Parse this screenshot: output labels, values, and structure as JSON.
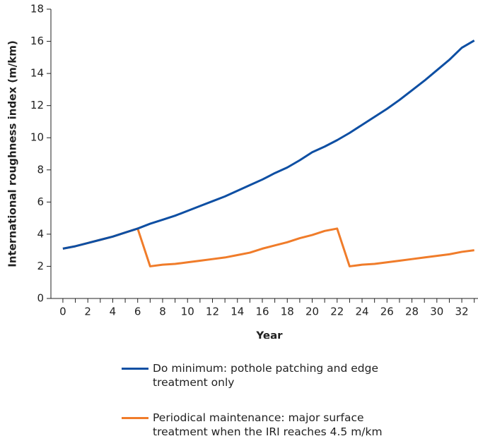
{
  "chart_data": {
    "type": "line",
    "xlabel": "Year",
    "ylabel": "International roughness index (m/km)",
    "x": [
      0,
      1,
      2,
      3,
      4,
      5,
      6,
      7,
      8,
      9,
      10,
      11,
      12,
      13,
      14,
      15,
      16,
      17,
      18,
      19,
      20,
      21,
      22,
      23,
      24,
      25,
      26,
      27,
      28,
      29,
      30,
      31,
      32,
      33
    ],
    "series": [
      {
        "name": "Do minimum: pothole patching and edge treatment only",
        "color": "#0e4fa3",
        "values": [
          3.1,
          3.25,
          3.45,
          3.65,
          3.85,
          4.1,
          4.35,
          4.65,
          4.9,
          5.15,
          5.45,
          5.75,
          6.05,
          6.35,
          6.7,
          7.05,
          7.4,
          7.8,
          8.15,
          8.6,
          9.1,
          9.45,
          9.85,
          10.3,
          10.8,
          11.3,
          11.8,
          12.35,
          12.95,
          13.55,
          14.2,
          14.85,
          15.6,
          16.05
        ]
      },
      {
        "name": "Periodical maintenance: major surface treatment when the IRI reaches 4.5 m/km",
        "color": "#f07c2a",
        "values": [
          3.1,
          3.25,
          3.45,
          3.65,
          3.85,
          4.1,
          4.35,
          2.0,
          2.1,
          2.15,
          2.25,
          2.35,
          2.45,
          2.55,
          2.7,
          2.85,
          3.1,
          3.3,
          3.5,
          3.75,
          3.95,
          4.2,
          4.35,
          2.0,
          2.1,
          2.15,
          2.25,
          2.35,
          2.45,
          2.55,
          2.65,
          2.75,
          2.9,
          3.0
        ]
      }
    ],
    "xlim": [
      -0.96,
      33.3
    ],
    "ylim": [
      0,
      18
    ],
    "xticks": [
      0,
      2,
      4,
      6,
      8,
      10,
      12,
      14,
      16,
      18,
      20,
      22,
      24,
      26,
      28,
      30,
      32
    ],
    "minor_xticks": [
      1,
      3,
      5,
      7,
      9,
      11,
      13,
      15,
      17,
      19,
      21,
      23,
      25,
      27,
      29,
      31,
      33
    ],
    "yticks": [
      0,
      2,
      4,
      6,
      8,
      10,
      12,
      14,
      16,
      18
    ],
    "grid": false
  }
}
